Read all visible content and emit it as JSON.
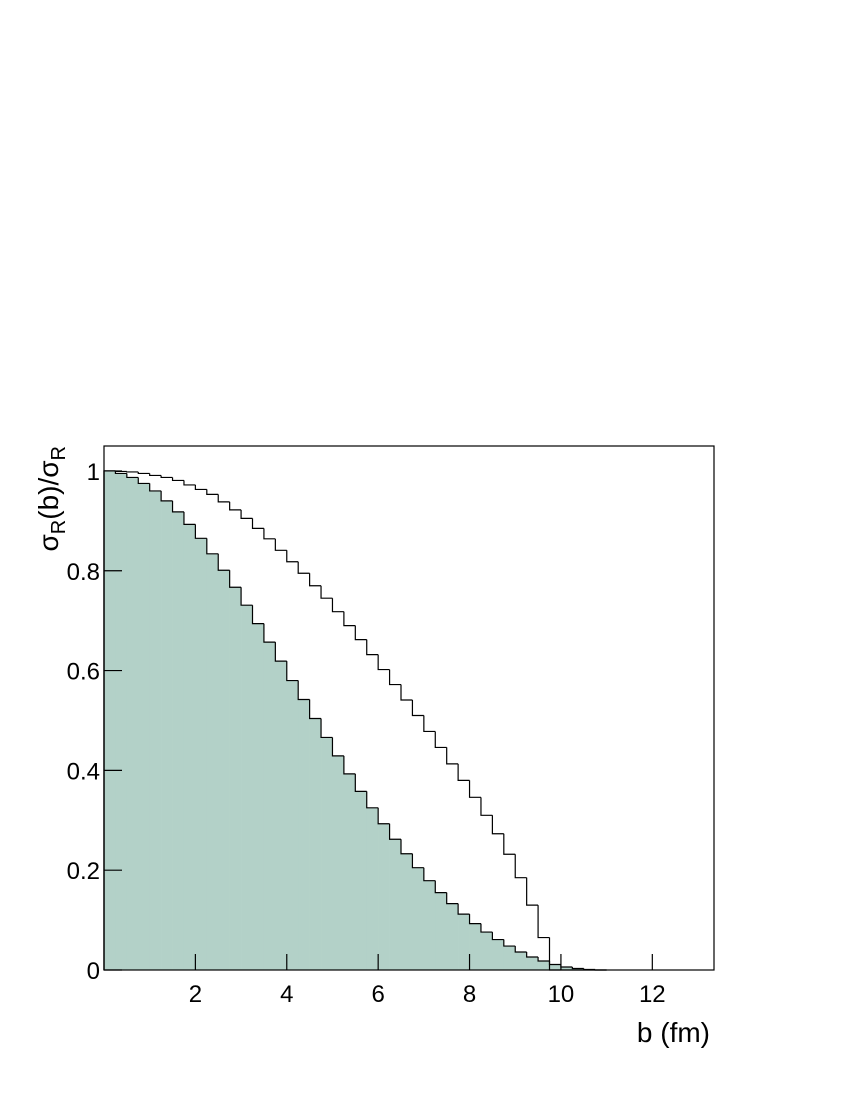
{
  "chart_data": {
    "type": "histogram",
    "ylabel": [
      "σ",
      "R",
      "(b)/σ",
      "R"
    ],
    "xlabel": "b (fm)",
    "bins": [
      0,
      0.25,
      0.5,
      0.75,
      1,
      1.25,
      1.5,
      1.75,
      2,
      2.25,
      2.5,
      2.75,
      3,
      3.25,
      3.5,
      3.75,
      4,
      4.25,
      4.5,
      4.75,
      5,
      5.25,
      5.5,
      5.75,
      6,
      6.25,
      6.5,
      6.75,
      7,
      7.25,
      7.5,
      7.75,
      8,
      8.25,
      8.5,
      8.75,
      9,
      9.25,
      9.5,
      9.75,
      10,
      10.25,
      10.5,
      10.75,
      11
    ],
    "series": [
      {
        "color": "#000000",
        "fill": "#b3d1c8",
        "values": [
          1.0,
          0.995,
          0.987,
          0.975,
          0.96,
          0.94,
          0.918,
          0.893,
          0.865,
          0.834,
          0.801,
          0.767,
          0.731,
          0.694,
          0.657,
          0.619,
          0.58,
          0.542,
          0.504,
          0.466,
          0.429,
          0.393,
          0.358,
          0.325,
          0.293,
          0.262,
          0.233,
          0.205,
          0.179,
          0.155,
          0.133,
          0.112,
          0.093,
          0.076,
          0.061,
          0.048,
          0.036,
          0.026,
          0.018,
          0.011,
          0.006,
          0.003,
          0.001,
          0
        ]
      },
      {
        "color": "#000000",
        "values": [
          1.0,
          0.999,
          0.998,
          0.995,
          0.991,
          0.987,
          0.981,
          0.972,
          0.963,
          0.953,
          0.938,
          0.922,
          0.905,
          0.885,
          0.864,
          0.841,
          0.818,
          0.795,
          0.77,
          0.745,
          0.718,
          0.69,
          0.662,
          0.632,
          0.602,
          0.572,
          0.541,
          0.51,
          0.478,
          0.446,
          0.413,
          0.38,
          0.346,
          0.31,
          0.273,
          0.232,
          0.185,
          0.13,
          0.065,
          0,
          0,
          0,
          0,
          0
        ]
      }
    ],
    "xlim": [
      0,
      13.35
    ],
    "ylim": [
      0,
      1.05
    ],
    "xticks": [
      2,
      4,
      6,
      8,
      10,
      12
    ],
    "yticks": [
      0,
      0.2,
      0.4,
      0.6,
      0.8,
      1
    ]
  }
}
